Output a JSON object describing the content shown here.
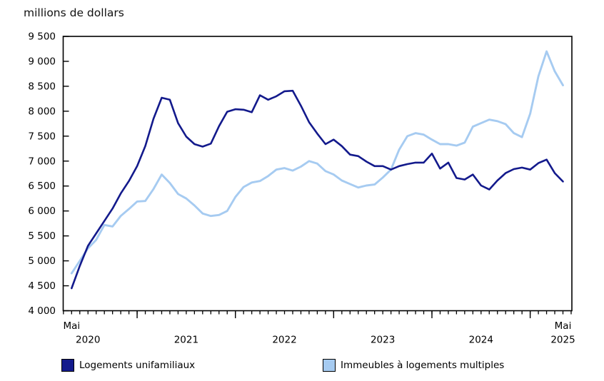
{
  "title": "millions de dollars",
  "chart_data": {
    "type": "line",
    "title": "millions de dollars",
    "x_range": {
      "from": "2020-05",
      "to": "2025-05",
      "freq": "monthly",
      "points": 61
    },
    "ylim": [
      4000,
      9500
    ],
    "ytick_step": 500,
    "grid": false,
    "legend_position": "bottom",
    "yticks": [
      {
        "value": 9500,
        "label": "9 500"
      },
      {
        "value": 9000,
        "label": "9 000"
      },
      {
        "value": 8500,
        "label": "8 500"
      },
      {
        "value": 8000,
        "label": "8 000"
      },
      {
        "value": 7500,
        "label": "7 500"
      },
      {
        "value": 7000,
        "label": "7 000"
      },
      {
        "value": 6500,
        "label": "6 500"
      },
      {
        "value": 6000,
        "label": "6 000"
      },
      {
        "value": 5500,
        "label": "5 500"
      },
      {
        "value": 5000,
        "label": "5 000"
      },
      {
        "value": 4500,
        "label": "4 500"
      },
      {
        "value": 4000,
        "label": "4 000"
      }
    ],
    "xaxis": {
      "start_label": {
        "text": "Mai",
        "month_index": 0
      },
      "end_label": {
        "text": "Mai",
        "month_index": 60
      },
      "year_labels": [
        {
          "text": "2020",
          "month_index": 2
        },
        {
          "text": "2021",
          "month_index": 14
        },
        {
          "text": "2022",
          "month_index": 26
        },
        {
          "text": "2023",
          "month_index": 38
        },
        {
          "text": "2024",
          "month_index": 50
        },
        {
          "text": "2025",
          "month_index": 60
        }
      ],
      "major_tick_month_indices": [
        8,
        20,
        32,
        44,
        56
      ],
      "minor_tick_range": [
        -1,
        61
      ]
    },
    "series": [
      {
        "name": "Logements unifamiliaux",
        "color": "#131a8c",
        "values": [
          4450,
          4900,
          5300,
          5550,
          5800,
          6050,
          6350,
          6600,
          6900,
          7300,
          7850,
          8270,
          8230,
          7760,
          7490,
          7340,
          7290,
          7350,
          7700,
          7990,
          8040,
          8030,
          7980,
          8320,
          8230,
          8300,
          8400,
          8410,
          8110,
          7780,
          7550,
          7340,
          7430,
          7300,
          7130,
          7100,
          6990,
          6900,
          6900,
          6830,
          6900,
          6940,
          6970,
          6970,
          7150,
          6850,
          6970,
          6660,
          6630,
          6730,
          6510,
          6430,
          6610,
          6760,
          6840,
          6870,
          6830,
          6960,
          7030,
          6760,
          6590
        ]
      },
      {
        "name": "Immeubles à logements multiples",
        "color": "#a6cbf1",
        "values": [
          4750,
          5000,
          5250,
          5420,
          5720,
          5690,
          5900,
          6040,
          6190,
          6200,
          6440,
          6730,
          6560,
          6340,
          6250,
          6110,
          5950,
          5900,
          5920,
          6000,
          6280,
          6480,
          6570,
          6600,
          6700,
          6830,
          6860,
          6810,
          6890,
          7000,
          6950,
          6800,
          6730,
          6610,
          6540,
          6470,
          6510,
          6530,
          6670,
          6830,
          7230,
          7500,
          7560,
          7530,
          7430,
          7340,
          7340,
          7310,
          7370,
          7690,
          7760,
          7830,
          7800,
          7740,
          7560,
          7480,
          7950,
          8700,
          9200,
          8800,
          8520
        ]
      }
    ]
  },
  "colors": {
    "axis": "#000000",
    "text": "#111111",
    "background": "#ffffff"
  }
}
